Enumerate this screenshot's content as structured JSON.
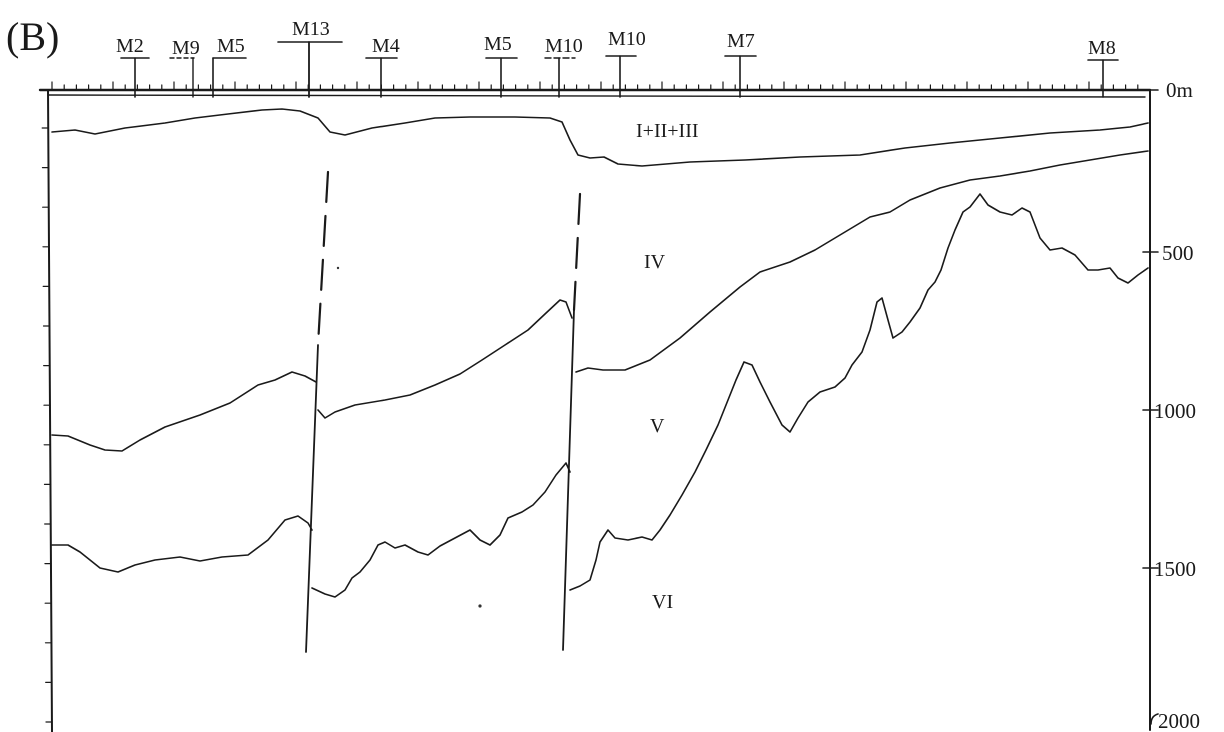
{
  "panel_label": "(B)",
  "wells": [
    {
      "label": "M2"
    },
    {
      "label": "M9"
    },
    {
      "label": "M5"
    },
    {
      "label": "M13"
    },
    {
      "label": "M4"
    },
    {
      "label": "M5"
    },
    {
      "label": "M10"
    },
    {
      "label": "M10"
    },
    {
      "label": "M7"
    },
    {
      "label": "M8"
    }
  ],
  "depth_axis": {
    "labels": [
      "0m",
      "500",
      "1000",
      "1500",
      "2000"
    ]
  },
  "units": [
    {
      "name": "I+II+III"
    },
    {
      "name": "IV"
    },
    {
      "name": "V"
    },
    {
      "name": "VI"
    }
  ]
}
